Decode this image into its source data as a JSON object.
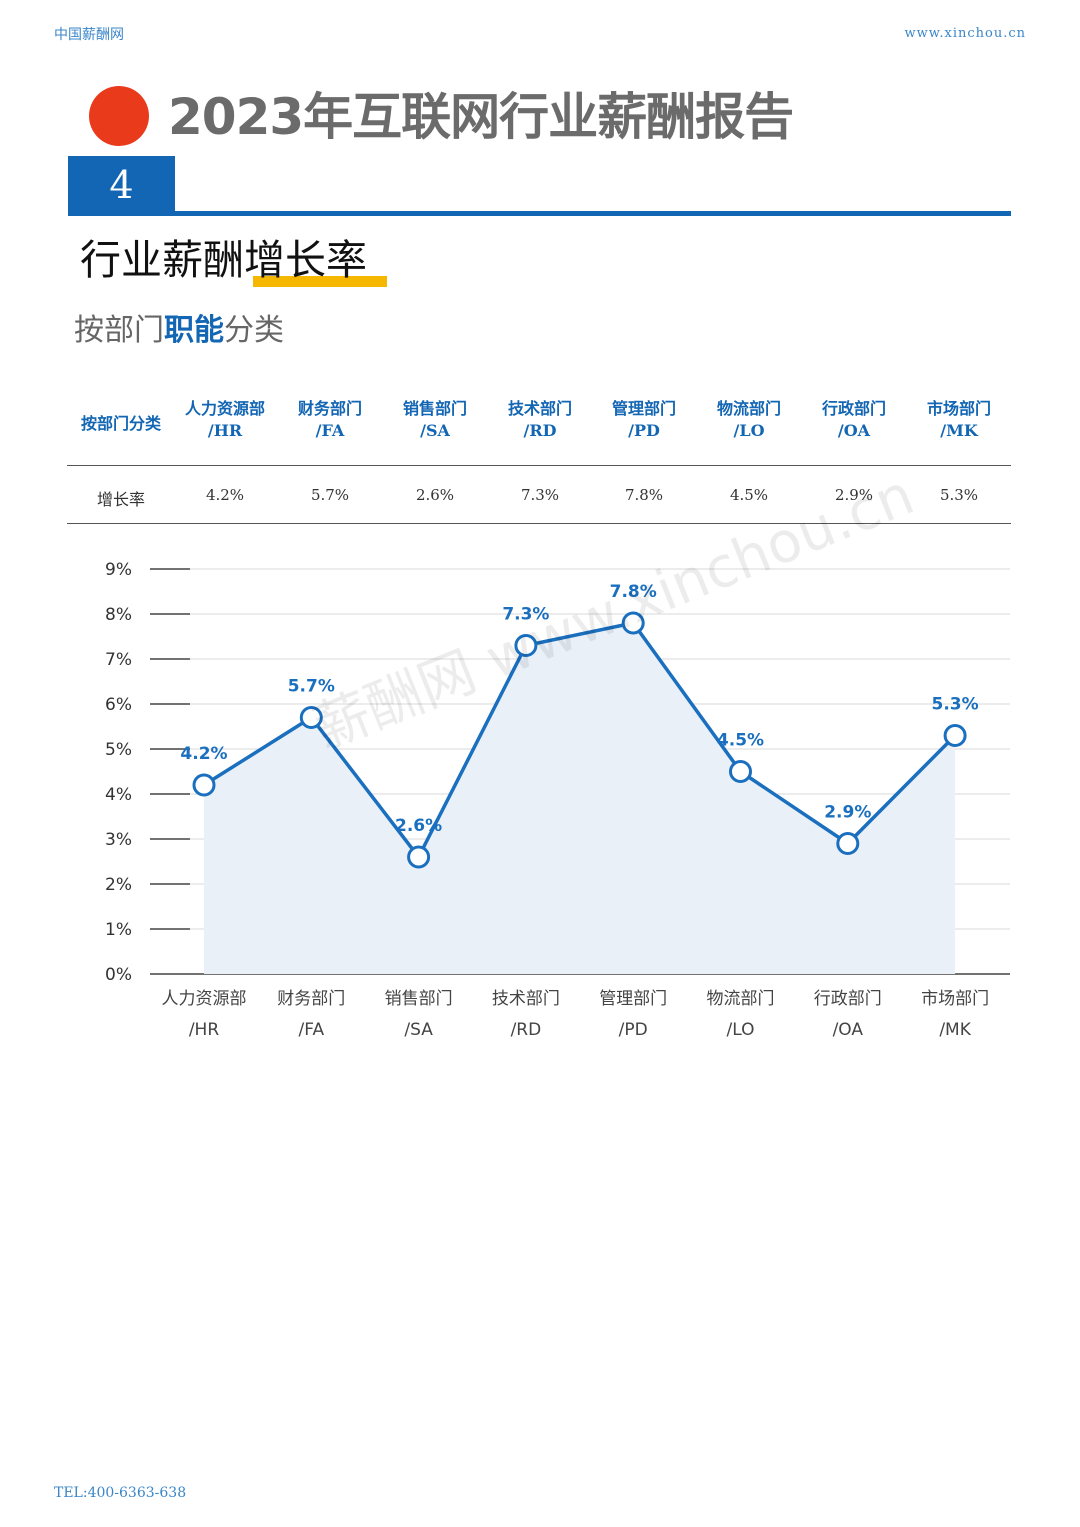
{
  "header": {
    "site_name": "中国薪酬网",
    "site_url": "www.xinchou.cn"
  },
  "report_title": "2023年互联网行业薪酬报告",
  "section": {
    "number": "4",
    "title": "行业薪酬增长率",
    "subtitle_pre": "按部门",
    "subtitle_highlight": "职能",
    "subtitle_post": "分类"
  },
  "table": {
    "corner": "按部门分类",
    "headers": [
      {
        "name": "人力资源部",
        "code": "/HR"
      },
      {
        "name": "财务部门",
        "code": "/FA"
      },
      {
        "name": "销售部门",
        "code": "/SA"
      },
      {
        "name": "技术部门",
        "code": "/RD"
      },
      {
        "name": "管理部门",
        "code": "/PD"
      },
      {
        "name": "物流部门",
        "code": "/LO"
      },
      {
        "name": "行政部门",
        "code": "/OA"
      },
      {
        "name": "市场部门",
        "code": "/MK"
      }
    ],
    "row_label": "增长率",
    "values": [
      "4.2%",
      "5.7%",
      "2.6%",
      "7.3%",
      "7.8%",
      "4.5%",
      "2.9%",
      "5.3%"
    ]
  },
  "chart_data": {
    "type": "area",
    "categories": [
      [
        "人力资源部",
        "/HR"
      ],
      [
        "财务部门",
        "/FA"
      ],
      [
        "销售部门",
        "/SA"
      ],
      [
        "技术部门",
        "/RD"
      ],
      [
        "管理部门",
        "/PD"
      ],
      [
        "物流部门",
        "/LO"
      ],
      [
        "行政部门",
        "/OA"
      ],
      [
        "市场部门",
        "/MK"
      ]
    ],
    "series": [
      {
        "values": [
          4.2,
          5.7,
          2.6,
          7.3,
          7.8,
          4.5,
          2.9,
          5.3
        ]
      }
    ],
    "data_labels": [
      "4.2%",
      "5.7%",
      "2.6%",
      "7.3%",
      "7.8%",
      "4.5%",
      "2.9%",
      "5.3%"
    ],
    "y_ticks": [
      "0%",
      "1%",
      "2%",
      "3%",
      "4%",
      "5%",
      "6%",
      "7%",
      "8%",
      "9%"
    ],
    "ylim": [
      0,
      9
    ],
    "grid": true,
    "colors": {
      "line": "#1a6fbf",
      "area": "#e9f0f8",
      "grid": "#d9d9d9",
      "label": "#1a6fbf"
    }
  },
  "watermark": "薪酬网 www.xinchou.cn",
  "footer": {
    "tel": "TEL:400-6363-638"
  }
}
